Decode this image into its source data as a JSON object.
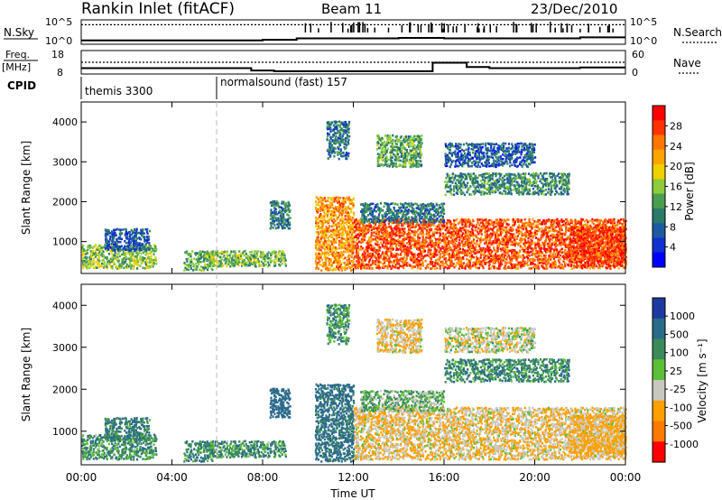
{
  "header": {
    "title": "Rankin Inlet (fitACF)",
    "beam": "Beam 11",
    "date": "23/Dec/2010"
  },
  "strips": {
    "nsky_label": "N.Sky",
    "nsky_ticks": [
      "10^5",
      "10^0"
    ],
    "nsearch_label": "N.Search",
    "nsearch_ticks": [
      "10^5",
      "10^0"
    ],
    "freq_label": "Freq.",
    "freq_unit": "[MHz]",
    "freq_ticks": [
      "18",
      "8"
    ],
    "nave_label": "Nave",
    "nave_ticks": [
      "60",
      "0"
    ],
    "cpid_label": "CPID",
    "cpid_segments": [
      {
        "label": "themis 3300",
        "start_hour": 0
      },
      {
        "label": "normalsound (fast) 157",
        "start_hour": 6
      }
    ]
  },
  "x_axis": {
    "label": "Time UT",
    "ticks": [
      "00:00",
      "04:00",
      "08:00",
      "12:00",
      "16:00",
      "20:00",
      "00:00"
    ]
  },
  "panels": {
    "power": {
      "ylabel": "Slant Range [km]",
      "y_ticks": [
        "1000",
        "2000",
        "3000",
        "4000"
      ],
      "colorbar_label": "Power [dB]",
      "colorbar_ticks": [
        "28",
        "24",
        "20",
        "16",
        "12",
        "8",
        "4"
      ],
      "colors": [
        "#ff0000",
        "#ff3300",
        "#ff7700",
        "#ffa500",
        "#f0d000",
        "#8ccc3a",
        "#4a9e50",
        "#2a7a6a",
        "#1e5aa0",
        "#1030d0",
        "#0000ff"
      ]
    },
    "velocity": {
      "ylabel": "Slant Range [km]",
      "y_ticks": [
        "1000",
        "2000",
        "3000",
        "4000"
      ],
      "colorbar_label": "Velocity [m s⁻¹]",
      "colorbar_ticks": [
        "1000",
        "500",
        "100",
        "25",
        "-25",
        "-100",
        "-500",
        "-1000"
      ],
      "colors": [
        "#1e3aa0",
        "#2a6a8a",
        "#3a8a5a",
        "#5bbf3a",
        "#c8c8c0",
        "#ffa000",
        "#ff7a00",
        "#ff0000"
      ]
    }
  },
  "chart_data": {
    "type": "heatmap",
    "x_range_hours": [
      0,
      24
    ],
    "y_range_km": [
      200,
      4500
    ],
    "x_ticks_hours": [
      0,
      4,
      8,
      12,
      16,
      20,
      24
    ],
    "y_ticks_km": [
      1000,
      2000,
      3000,
      4000
    ],
    "power_range_db": [
      0,
      30
    ],
    "velocity_range_ms": [
      -1000,
      1000
    ],
    "echo_regions": [
      {
        "t0": 0.0,
        "t1": 3.3,
        "r0": 350,
        "r1": 950,
        "power_db": 14,
        "velocity_ms": 60
      },
      {
        "t0": 1.0,
        "t1": 3.0,
        "r0": 800,
        "r1": 1350,
        "power_db": 6,
        "velocity_ms": 100
      },
      {
        "t0": 4.5,
        "t1": 5.8,
        "r0": 300,
        "r1": 800,
        "power_db": 12,
        "velocity_ms": 80
      },
      {
        "t0": 5.5,
        "t1": 9.0,
        "r0": 400,
        "r1": 800,
        "power_db": 14,
        "velocity_ms": 60
      },
      {
        "t0": 8.3,
        "t1": 9.2,
        "r0": 1350,
        "r1": 2050,
        "power_db": 8,
        "velocity_ms": 250
      },
      {
        "t0": 10.3,
        "t1": 12.0,
        "r0": 300,
        "r1": 2150,
        "power_db": 22,
        "velocity_ms": 150
      },
      {
        "t0": 12.0,
        "t1": 24.0,
        "r0": 350,
        "r1": 1600,
        "power_db": 26,
        "velocity_ms": -100
      },
      {
        "t0": 12.3,
        "t1": 16.0,
        "r0": 1500,
        "r1": 2000,
        "power_db": 8,
        "velocity_ms": 10
      },
      {
        "t0": 10.8,
        "t1": 11.8,
        "r0": 3100,
        "r1": 4050,
        "power_db": 8,
        "velocity_ms": 60
      },
      {
        "t0": 13.0,
        "t1": 15.0,
        "r0": 2900,
        "r1": 3700,
        "power_db": 12,
        "velocity_ms": -100
      },
      {
        "t0": 16.0,
        "t1": 21.5,
        "r0": 2200,
        "r1": 2750,
        "power_db": 10,
        "velocity_ms": 80
      },
      {
        "t0": 16.0,
        "t1": 20.0,
        "r0": 2900,
        "r1": 3500,
        "power_db": 6,
        "velocity_ms": -50
      },
      {
        "t0": 21.5,
        "t1": 24.0,
        "r0": 500,
        "r1": 1400,
        "power_db": 27,
        "velocity_ms": -150
      }
    ],
    "nsky": {
      "x": [
        0,
        4,
        8,
        9.5,
        12,
        14,
        16,
        18,
        20,
        22,
        24
      ],
      "y": [
        8,
        8,
        9,
        12,
        12,
        13,
        12,
        12,
        12,
        14,
        12
      ]
    },
    "nsearch": {
      "x": [
        0,
        12,
        24
      ],
      "y": [
        40,
        40,
        40
      ]
    },
    "freq_mhz": {
      "x": [
        0,
        6,
        7.5,
        8.5,
        13,
        15.5,
        17,
        18,
        21,
        22,
        24
      ],
      "y": [
        10.5,
        10.5,
        9.5,
        9.2,
        9.2,
        12.8,
        11,
        10.5,
        10.5,
        10.8,
        10.5
      ]
    },
    "nave": {
      "x": [
        0,
        24
      ],
      "y": [
        30,
        30
      ]
    }
  }
}
